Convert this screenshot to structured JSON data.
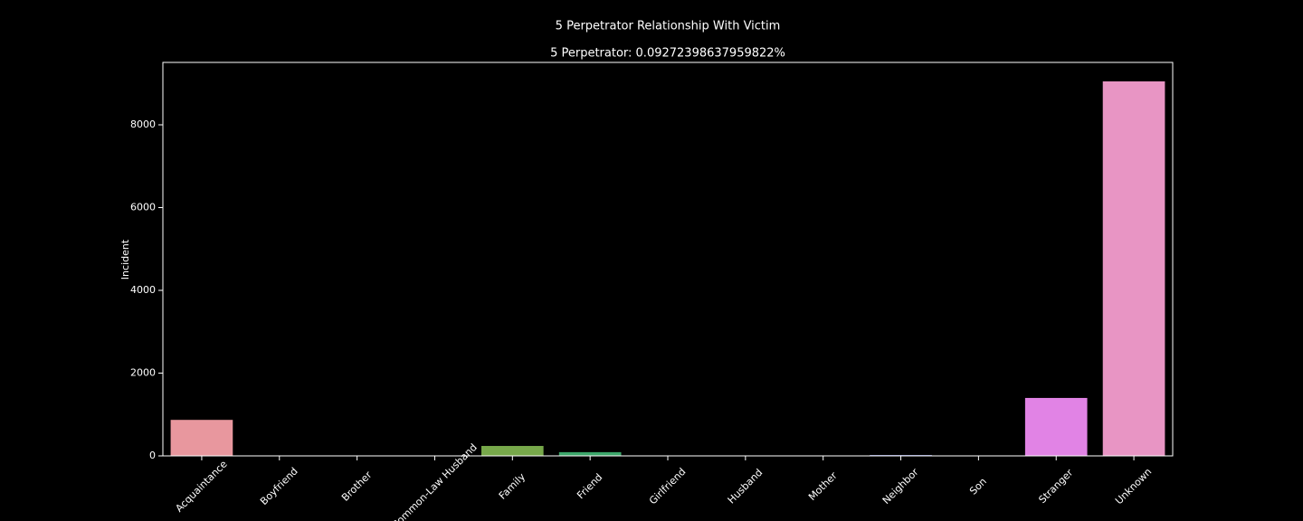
{
  "chart_data": {
    "type": "bar",
    "title": "5 Perpetrator Relationship With Victim",
    "subtitle": "5 Perpetrator: 0.09272398637959822%",
    "y_label": "Incident",
    "categories": [
      "Acquaintance",
      "Boyfriend",
      "Brother",
      "Common-Law Husband",
      "Family",
      "Friend",
      "Girlfriend",
      "Husband",
      "Mother",
      "Neighbor",
      "Son",
      "Stranger",
      "Unknown"
    ],
    "values": [
      870,
      2,
      3,
      1,
      240,
      90,
      2,
      3,
      1,
      20,
      4,
      1400,
      9050
    ],
    "colors": [
      "#e8979e",
      "#dfa35a",
      "#c2ab4c",
      "#a2b24b",
      "#77a84a",
      "#3ca76a",
      "#40a697",
      "#40a3b0",
      "#44a0cf",
      "#8f98e7",
      "#c08ce6",
      "#e183e5",
      "#e895c4"
    ],
    "ylim": [
      0,
      9508
    ],
    "yticks": [
      0,
      2000,
      4000,
      6000,
      8000
    ]
  }
}
